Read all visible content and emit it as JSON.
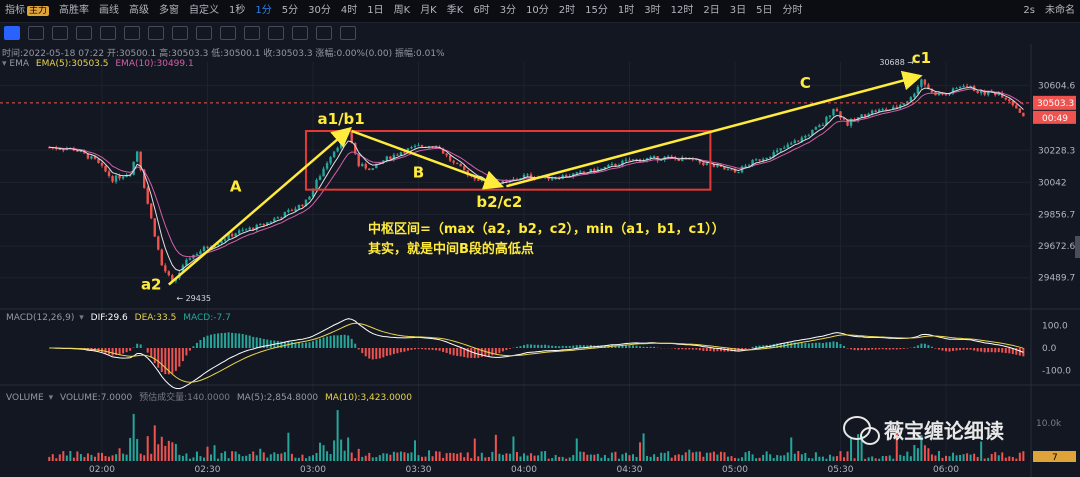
{
  "toolbar": {
    "items": [
      "指标",
      "主力",
      "高胜率",
      "画线",
      "高级",
      "多窗",
      "自定义",
      "1秒",
      "1分",
      "5分",
      "30分",
      "4时",
      "1日",
      "周K",
      "月K",
      "季K",
      "6时",
      "3分",
      "10分",
      "2时",
      "15分",
      "1时",
      "3时",
      "12时",
      "2日",
      "3日",
      "5日",
      "分时"
    ],
    "active_index": 8,
    "right_items": [
      "2s",
      "未命名"
    ]
  },
  "header": {
    "ohlc": "时间:2022-05-18 07:22 开:30500.1 高:30503.3 低:30500.1 收:30503.3 涨幅:0.00%(0.00) 振幅:0.01%",
    "ema_label": "EMA",
    "ema5": "EMA(5):30503.5",
    "ema10": "EMA(10):30499.1"
  },
  "macd_header": {
    "name": "MACD(12,26,9)",
    "dif": "DIF:29.6",
    "dea": "DEA:33.5",
    "macd": "MACD:-7.7"
  },
  "volume_header": {
    "name": "VOLUME",
    "vol": "VOLUME:7.0000",
    "est": "预估成交量:140.0000",
    "ma5": "MA(5):2,854.8000",
    "ma10": "MA(10):3,423.0000"
  },
  "annotations": {
    "a1b1": "a1/b1",
    "a2": "a2",
    "A": "A",
    "B": "B",
    "b2c2": "b2/c2",
    "C": "C",
    "c1": "c1",
    "low_label": "29435",
    "high_label": "30688",
    "formula1": "中枢区间=（max（a2，b2，c2），min（a1，b1，c1））",
    "formula2": "其实，就是中间B段的高低点"
  },
  "watermark": "薇宝缠论细读",
  "price_tags": {
    "current": "30503.3",
    "countdown": "00:49",
    "vol_tag": "7",
    "vol_scale": "10.0k"
  },
  "colors": {
    "up": "#26a69a",
    "down": "#ef5350",
    "ema5": "#e0e0e0",
    "ema10": "#d45faa",
    "dif": "#ffffff",
    "dea": "#e8d44d",
    "annot": "#ffeb3b",
    "box": "#e53935",
    "bg": "#131722"
  },
  "chart_data": {
    "type": "candlestick",
    "x_ticks": [
      "02:00",
      "02:30",
      "03:00",
      "03:30",
      "04:00",
      "04:30",
      "05:00",
      "05:30",
      "06:00"
    ],
    "price_ticks": [
      30604.6,
      30228.3,
      30042.0,
      29856.7,
      29672.6,
      29489.7
    ],
    "price_range": [
      29430,
      30740
    ],
    "macd_ticks": [
      100.0,
      0.0,
      -100.0
    ],
    "macd_range": [
      -135,
      135
    ],
    "volume_max": 15000,
    "low_price": 29435,
    "high_price": 30688,
    "current_price": 30503.3,
    "zhongshu": {
      "high": 30340,
      "low": 30000
    },
    "close_path": [
      {
        "t": "01:45",
        "p": 30245
      },
      {
        "t": "01:52",
        "p": 30235
      },
      {
        "t": "01:58",
        "p": 30170
      },
      {
        "t": "02:03",
        "p": 30060
      },
      {
        "t": "02:08",
        "p": 30100
      },
      {
        "t": "02:10",
        "p": 30225
      },
      {
        "t": "02:13",
        "p": 29920
      },
      {
        "t": "02:17",
        "p": 29560
      },
      {
        "t": "02:20",
        "p": 29460
      },
      {
        "t": "02:25",
        "p": 29610
      },
      {
        "t": "02:30",
        "p": 29670
      },
      {
        "t": "02:38",
        "p": 29750
      },
      {
        "t": "02:45",
        "p": 29790
      },
      {
        "t": "02:52",
        "p": 29860
      },
      {
        "t": "02:58",
        "p": 29930
      },
      {
        "t": "03:05",
        "p": 30200
      },
      {
        "t": "03:10",
        "p": 30340
      },
      {
        "t": "03:13",
        "p": 30140
      },
      {
        "t": "03:17",
        "p": 30120
      },
      {
        "t": "03:20",
        "p": 30170
      },
      {
        "t": "03:25",
        "p": 30220
      },
      {
        "t": "03:30",
        "p": 30250
      },
      {
        "t": "03:35",
        "p": 30260
      },
      {
        "t": "03:40",
        "p": 30150
      },
      {
        "t": "03:45",
        "p": 30080
      },
      {
        "t": "03:50",
        "p": 30030
      },
      {
        "t": "03:55",
        "p": 30040
      },
      {
        "t": "04:00",
        "p": 30080
      },
      {
        "t": "04:08",
        "p": 30070
      },
      {
        "t": "04:15",
        "p": 30090
      },
      {
        "t": "04:22",
        "p": 30120
      },
      {
        "t": "04:30",
        "p": 30170
      },
      {
        "t": "04:40",
        "p": 30185
      },
      {
        "t": "04:48",
        "p": 30170
      },
      {
        "t": "04:55",
        "p": 30130
      },
      {
        "t": "05:00",
        "p": 30100
      },
      {
        "t": "05:05",
        "p": 30160
      },
      {
        "t": "05:12",
        "p": 30220
      },
      {
        "t": "05:20",
        "p": 30310
      },
      {
        "t": "05:25",
        "p": 30380
      },
      {
        "t": "05:28",
        "p": 30475
      },
      {
        "t": "05:32",
        "p": 30380
      },
      {
        "t": "05:38",
        "p": 30450
      },
      {
        "t": "05:45",
        "p": 30470
      },
      {
        "t": "05:50",
        "p": 30530
      },
      {
        "t": "05:53",
        "p": 30640
      },
      {
        "t": "05:56",
        "p": 30560
      },
      {
        "t": "06:00",
        "p": 30550
      },
      {
        "t": "06:05",
        "p": 30610
      },
      {
        "t": "06:10",
        "p": 30560
      },
      {
        "t": "06:15",
        "p": 30560
      },
      {
        "t": "06:18",
        "p": 30520
      },
      {
        "t": "06:22",
        "p": 30430
      }
    ]
  }
}
